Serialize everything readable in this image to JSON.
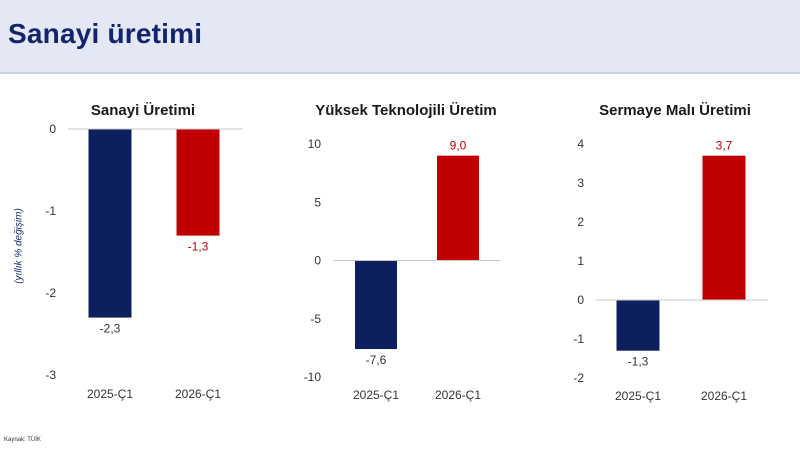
{
  "header": {
    "title": "Sanayi üretimi"
  },
  "y_axis_label": "(yıllık % değişim)",
  "source": "Kaynak: TÜİK",
  "colors": {
    "series_2025": "#0d1f5c",
    "series_2026": "#c00000",
    "header_bg": "#e3e8f4"
  },
  "chart_data": [
    {
      "type": "bar",
      "title": "Sanayi Üretimi",
      "categories": [
        "2025-Ç1",
        "2026-Ç1"
      ],
      "values": [
        -2.3,
        -1.3
      ],
      "labels": [
        "-2,3",
        "-1,3"
      ],
      "ylim": [
        -3,
        0
      ],
      "yticks": [
        0,
        -1,
        -2,
        -3
      ],
      "ytick_labels": [
        "0",
        "-1",
        "-2",
        "-3"
      ]
    },
    {
      "type": "bar",
      "title": "Yüksek Teknolojili Üretim",
      "categories": [
        "2025-Ç1",
        "2026-Ç1"
      ],
      "values": [
        -7.6,
        9.0
      ],
      "labels": [
        "-7,6",
        "9,0"
      ],
      "ylim": [
        -10,
        10
      ],
      "yticks": [
        10,
        5,
        0,
        -5,
        -10
      ],
      "ytick_labels": [
        "10",
        "5",
        "0",
        "-5",
        "-10"
      ]
    },
    {
      "type": "bar",
      "title": "Sermaye Malı Üretimi",
      "categories": [
        "2025-Ç1",
        "2026-Ç1"
      ],
      "values": [
        -1.3,
        3.7
      ],
      "labels": [
        "-1,3",
        "3,7"
      ],
      "ylim": [
        -2,
        4
      ],
      "yticks": [
        4,
        3,
        2,
        1,
        0,
        -1,
        -2
      ],
      "ytick_labels": [
        "4",
        "3",
        "2",
        "1",
        "0",
        "-1",
        "-2"
      ]
    }
  ]
}
